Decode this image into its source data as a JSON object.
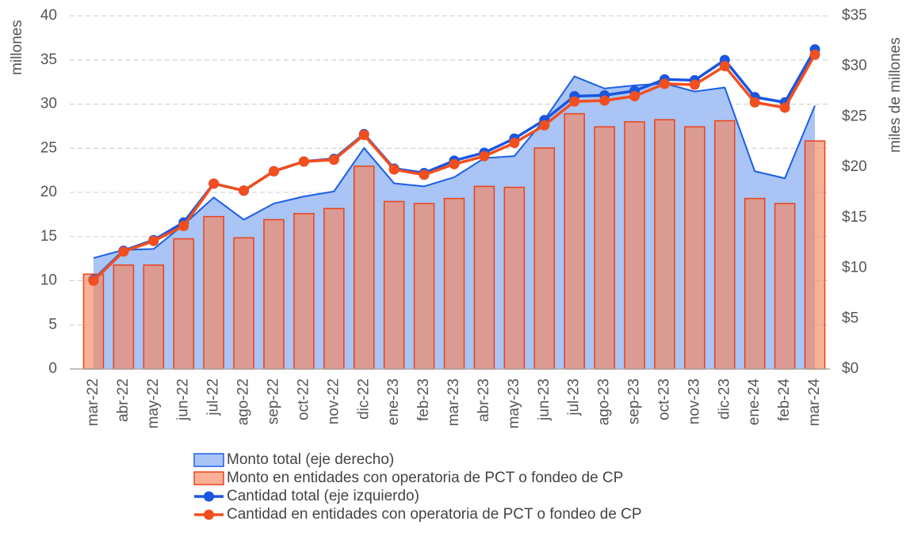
{
  "chart_data": {
    "type": "combo",
    "categories": [
      "mar-22",
      "abr-22",
      "may-22",
      "jun-22",
      "jul-22",
      "ago-22",
      "sep-22",
      "oct-22",
      "nov-22",
      "dic-22",
      "ene-23",
      "feb-23",
      "mar-23",
      "abr-23",
      "may-23",
      "jun-23",
      "jul-23",
      "ago-23",
      "sep-23",
      "oct-23",
      "nov-23",
      "dic-23",
      "ene-24",
      "feb-24",
      "mar-24"
    ],
    "ylabel": "millones",
    "y2label": "miles de millones",
    "ylim": [
      0,
      40
    ],
    "yticks": [
      0,
      5,
      10,
      15,
      20,
      25,
      30,
      35,
      40
    ],
    "y2lim": [
      0,
      35
    ],
    "y2ticks": [
      {
        "value": 0,
        "label": "$0"
      },
      {
        "value": 5,
        "label": "$5"
      },
      {
        "value": 10,
        "label": "$10"
      },
      {
        "value": 15,
        "label": "$15"
      },
      {
        "value": 20,
        "label": "$20"
      },
      {
        "value": 25,
        "label": "$25"
      },
      {
        "value": 30,
        "label": "$30"
      },
      {
        "value": 35,
        "label": "$35"
      }
    ],
    "grid": true,
    "series": [
      {
        "name": "Monto total (eje derecho)",
        "type": "area",
        "axis": "y2",
        "color": "#1a5fe8",
        "fill": "#a9c4f5",
        "values": [
          11.0,
          11.8,
          11.9,
          14.3,
          17.0,
          14.8,
          16.4,
          17.1,
          17.6,
          21.9,
          18.4,
          18.1,
          19.0,
          20.9,
          21.1,
          24.7,
          29.0,
          27.8,
          28.1,
          28.3,
          27.5,
          27.9,
          19.6,
          18.9,
          26.1
        ]
      },
      {
        "name": "Monto en entidades con operatoria de PCT o fondeo de CP",
        "type": "bar",
        "axis": "y2",
        "color": "#e8431a",
        "fill": "#f6855c",
        "values": [
          9.4,
          10.3,
          10.3,
          12.9,
          15.1,
          13.0,
          14.8,
          15.4,
          15.9,
          20.1,
          16.6,
          16.4,
          16.9,
          18.1,
          18.0,
          21.9,
          25.3,
          24.0,
          24.5,
          24.7,
          24.0,
          24.6,
          16.9,
          16.4,
          22.6
        ]
      },
      {
        "name": "Cantidad total (eje izquierdo)",
        "type": "line",
        "color": "#1a56e0",
        "values": [
          10.1,
          13.4,
          14.6,
          16.6,
          21.0,
          20.2,
          22.4,
          23.5,
          23.8,
          26.6,
          22.7,
          22.2,
          23.6,
          24.5,
          26.1,
          28.2,
          30.9,
          31.0,
          31.5,
          32.8,
          32.7,
          35.0,
          30.8,
          30.2,
          36.2
        ]
      },
      {
        "name": "Cantidad en entidades con operatoria de PCT o fondeo de CP",
        "type": "line",
        "color": "#f24e1e",
        "values": [
          10.0,
          13.3,
          14.5,
          16.2,
          21.0,
          20.2,
          22.4,
          23.5,
          23.7,
          26.5,
          22.6,
          22.0,
          23.2,
          24.1,
          25.6,
          27.6,
          30.3,
          30.4,
          30.9,
          32.3,
          32.2,
          34.3,
          30.2,
          29.6,
          35.6
        ]
      }
    ]
  }
}
